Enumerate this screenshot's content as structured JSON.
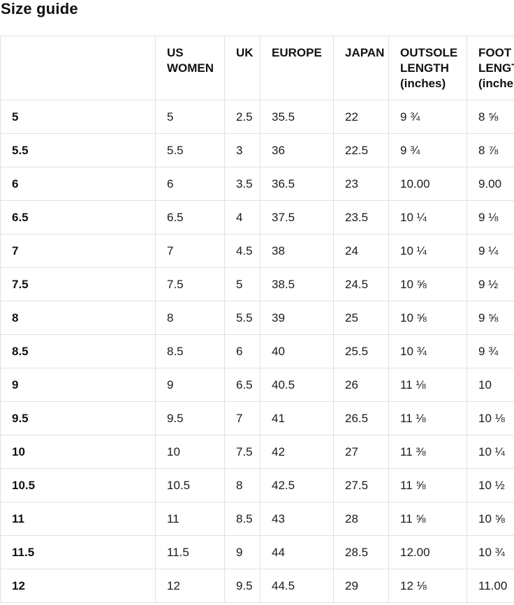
{
  "title": "Size guide",
  "table": {
    "headers": {
      "label": "",
      "us_women": "US WOMEN",
      "uk": "UK",
      "europe": "EUROPE",
      "japan": "JAPAN",
      "outsole_length": "OUTSOLE LENGTH (inches)",
      "foot_length": "FOOT LENGTH (inches)"
    },
    "rows": [
      [
        "5",
        "5",
        "2.5",
        "35.5",
        "22",
        "9 ¾",
        "8 ⅝"
      ],
      [
        "5.5",
        "5.5",
        "3",
        "36",
        "22.5",
        "9 ¾",
        "8 ⅞"
      ],
      [
        "6",
        "6",
        "3.5",
        "36.5",
        "23",
        "10.00",
        "9.00"
      ],
      [
        "6.5",
        "6.5",
        "4",
        "37.5",
        "23.5",
        "10 ¼",
        "9 ⅛"
      ],
      [
        "7",
        "7",
        "4.5",
        "38",
        "24",
        "10 ¼",
        "9 ¼"
      ],
      [
        "7.5",
        "7.5",
        "5",
        "38.5",
        "24.5",
        "10 ⅝",
        "9 ½"
      ],
      [
        "8",
        "8",
        "5.5",
        "39",
        "25",
        "10 ⅝",
        "9 ⅝"
      ],
      [
        "8.5",
        "8.5",
        "6",
        "40",
        "25.5",
        "10 ¾",
        "9 ¾"
      ],
      [
        "9",
        "9",
        "6.5",
        "40.5",
        "26",
        "11 ⅛",
        "10"
      ],
      [
        "9.5",
        "9.5",
        "7",
        "41",
        "26.5",
        "11 ⅛",
        "10 ⅛"
      ],
      [
        "10",
        "10",
        "7.5",
        "42",
        "27",
        "11 ⅜",
        "10 ¼"
      ],
      [
        "10.5",
        "10.5",
        "8",
        "42.5",
        "27.5",
        "11 ⅝",
        "10 ½"
      ],
      [
        "11",
        "11",
        "8.5",
        "43",
        "28",
        "11 ⅝",
        "10 ⅝"
      ],
      [
        "11.5",
        "11.5",
        "9",
        "44",
        "28.5",
        "12.00",
        "10 ¾"
      ],
      [
        "12",
        "12",
        "9.5",
        "44.5",
        "29",
        "12 ⅛",
        "11.00"
      ]
    ],
    "colors": {
      "border": "#e1e1e1",
      "text": "#1a1a1a",
      "heading": "#111111",
      "background": "#ffffff"
    }
  }
}
